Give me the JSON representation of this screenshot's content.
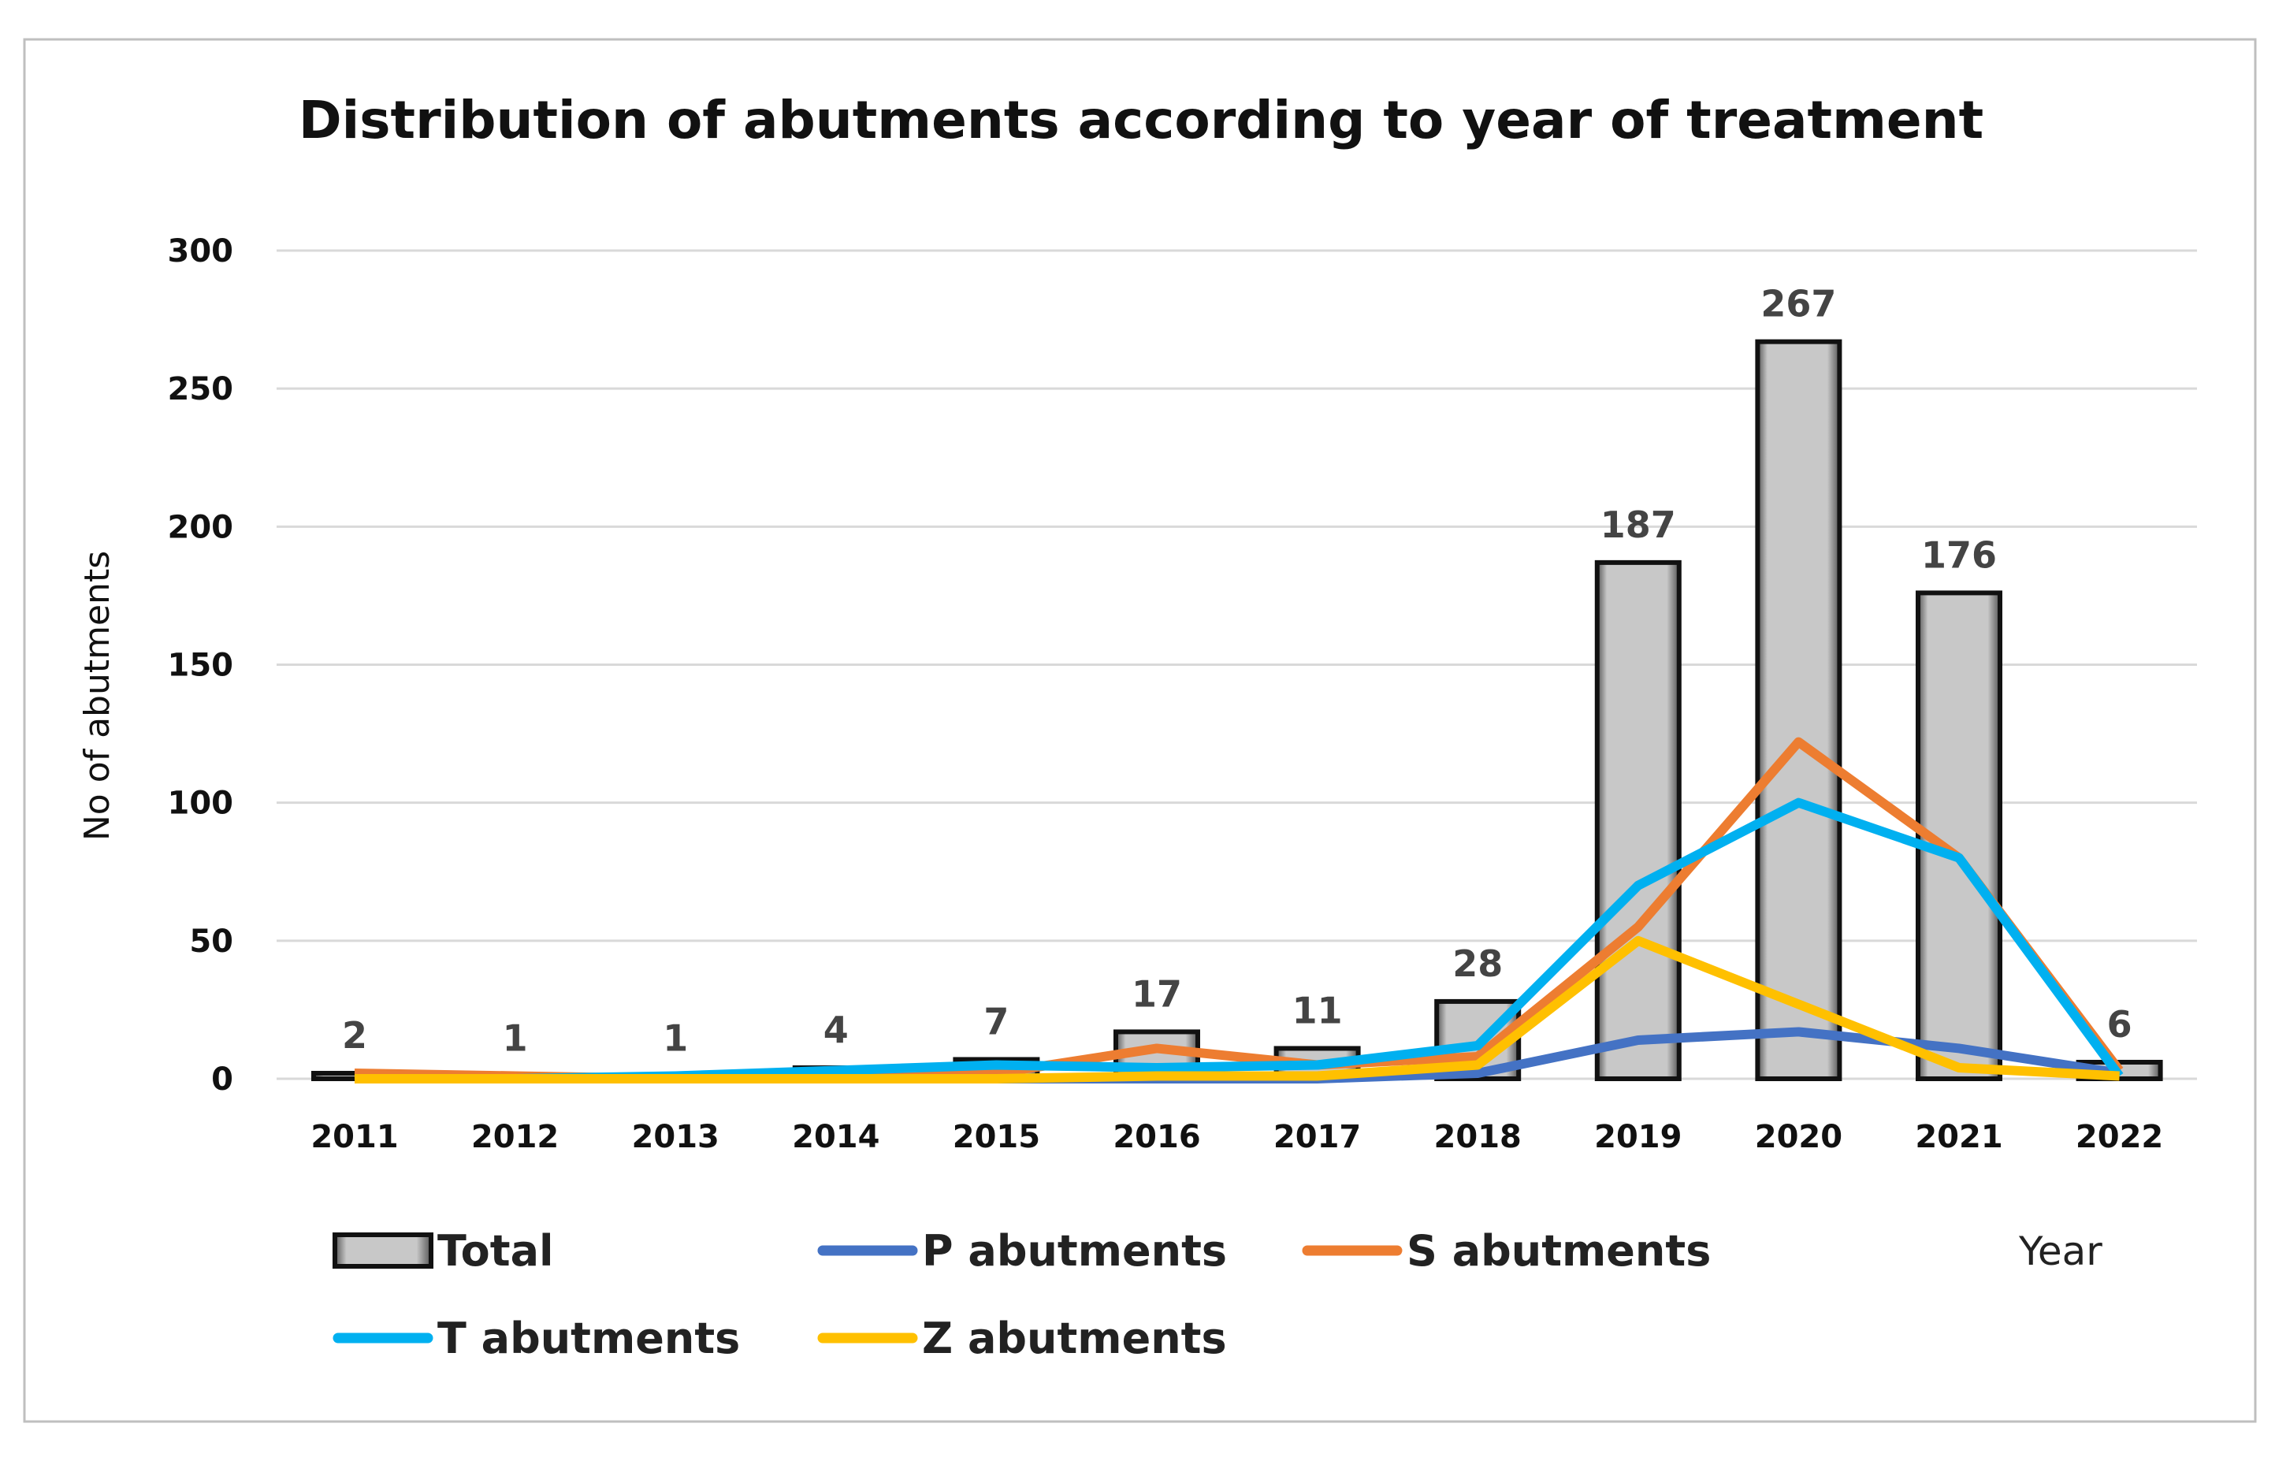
{
  "chart_data": {
    "type": "bar",
    "title": "Distribution of abutments according to year of treatment",
    "xlabel": "Year",
    "ylabel": "No of abutments",
    "ylim": [
      0,
      300
    ],
    "yticks": [
      0,
      50,
      100,
      150,
      200,
      250,
      300
    ],
    "grid": true,
    "legend_position": "bottom",
    "categories": [
      "2011",
      "2012",
      "2013",
      "2014",
      "2015",
      "2016",
      "2017",
      "2018",
      "2019",
      "2020",
      "2021",
      "2022"
    ],
    "series": [
      {
        "name": "Total",
        "kind": "bar",
        "color": "#c8c8c8",
        "values": [
          2,
          1,
          1,
          4,
          7,
          17,
          11,
          28,
          187,
          267,
          176,
          6
        ],
        "data_labels": true
      },
      {
        "name": "P abutments",
        "kind": "line",
        "color": "#4472c4",
        "values": [
          0,
          0,
          0,
          0,
          0,
          0,
          0,
          2,
          14,
          17,
          11,
          2
        ]
      },
      {
        "name": "S abutments",
        "kind": "line",
        "color": "#ed7d31",
        "values": [
          2,
          1,
          0,
          1,
          2,
          11,
          5,
          8,
          55,
          122,
          80,
          3
        ]
      },
      {
        "name": "T abutments",
        "kind": "line",
        "color": "#00b0f0",
        "values": [
          0,
          0,
          1,
          3,
          5,
          4,
          5,
          12,
          70,
          100,
          80,
          1
        ]
      },
      {
        "name": "Z abutments",
        "kind": "line",
        "color": "#ffc000",
        "values": [
          0,
          0,
          0,
          0,
          0,
          1,
          1,
          5,
          50,
          27,
          4,
          1
        ]
      }
    ]
  }
}
